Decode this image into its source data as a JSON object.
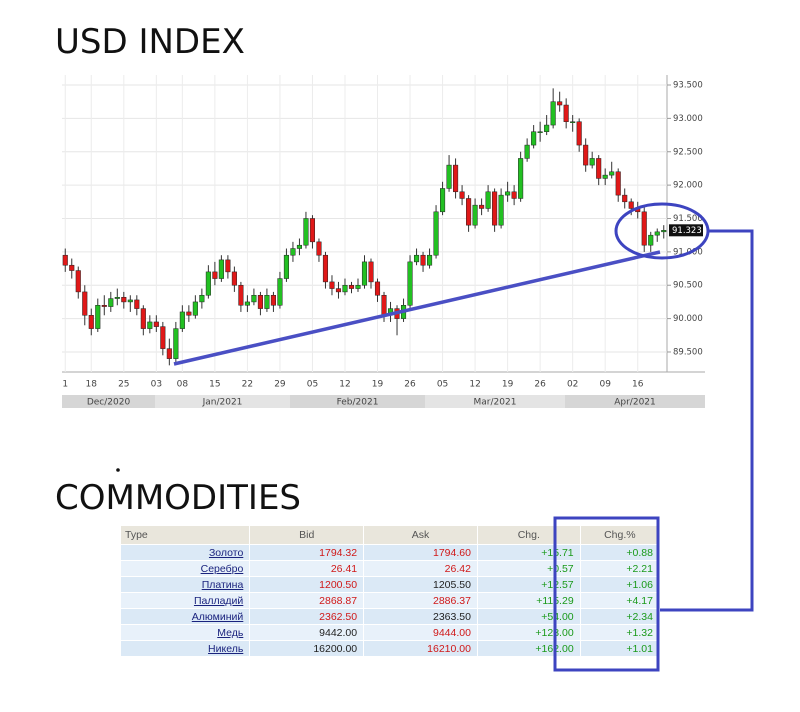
{
  "chart_data": {
    "type": "candlestick",
    "title": "USD INDEX",
    "categories": [
      "1",
      null,
      null,
      null,
      "18",
      null,
      null,
      null,
      null,
      "25",
      null,
      null,
      null,
      null,
      "03",
      null,
      null,
      null,
      "08",
      null,
      null,
      null,
      null,
      "15",
      null,
      null,
      null,
      null,
      "22",
      null,
      null,
      null,
      null,
      "29",
      null,
      null,
      null,
      null,
      "05",
      null,
      null,
      null,
      null,
      "12",
      null,
      null,
      null,
      null,
      "19",
      null,
      null,
      null,
      null,
      "26",
      null,
      null,
      null,
      null,
      "05",
      null,
      null,
      null,
      null,
      "12",
      null,
      null,
      null,
      null,
      "19",
      null,
      null,
      null,
      null,
      "26",
      null,
      null,
      null,
      null,
      "02",
      null,
      null,
      null,
      null,
      "09",
      null,
      null,
      null,
      null,
      "16",
      null,
      null,
      null,
      null
    ],
    "periods": [
      "Dec/2020",
      "Jan/2021",
      "Feb/2021",
      "Mar/2021",
      "Apr/2021"
    ],
    "candles": [
      [
        90.95,
        91.05,
        90.7,
        90.8
      ],
      [
        90.8,
        90.9,
        90.6,
        90.72
      ],
      [
        90.72,
        90.78,
        90.3,
        90.4
      ],
      [
        90.4,
        90.5,
        89.9,
        90.05
      ],
      [
        90.05,
        90.15,
        89.75,
        89.85
      ],
      [
        89.85,
        90.3,
        89.8,
        90.2
      ],
      [
        90.2,
        90.35,
        90.05,
        90.18
      ],
      [
        90.18,
        90.4,
        90.1,
        90.3
      ],
      [
        90.3,
        90.45,
        90.2,
        90.32
      ],
      [
        90.32,
        90.4,
        90.15,
        90.25
      ],
      [
        90.25,
        90.35,
        90.1,
        90.28
      ],
      [
        90.28,
        90.35,
        90.05,
        90.15
      ],
      [
        90.15,
        90.2,
        89.75,
        89.85
      ],
      [
        89.85,
        90.05,
        89.78,
        89.95
      ],
      [
        89.95,
        90.05,
        89.8,
        89.88
      ],
      [
        89.88,
        89.95,
        89.45,
        89.55
      ],
      [
        89.55,
        89.7,
        89.3,
        89.4
      ],
      [
        89.4,
        89.95,
        89.35,
        89.85
      ],
      [
        89.85,
        90.2,
        89.8,
        90.1
      ],
      [
        90.1,
        90.2,
        89.95,
        90.05
      ],
      [
        90.05,
        90.35,
        90.0,
        90.25
      ],
      [
        90.25,
        90.45,
        90.15,
        90.35
      ],
      [
        90.35,
        90.8,
        90.3,
        90.7
      ],
      [
        90.7,
        90.85,
        90.5,
        90.6
      ],
      [
        90.6,
        90.95,
        90.55,
        90.88
      ],
      [
        90.88,
        90.95,
        90.6,
        90.7
      ],
      [
        90.7,
        90.78,
        90.4,
        90.5
      ],
      [
        90.5,
        90.55,
        90.1,
        90.2
      ],
      [
        90.2,
        90.35,
        90.1,
        90.25
      ],
      [
        90.25,
        90.45,
        90.2,
        90.35
      ],
      [
        90.35,
        90.4,
        90.05,
        90.15
      ],
      [
        90.15,
        90.45,
        90.1,
        90.35
      ],
      [
        90.35,
        90.4,
        90.1,
        90.2
      ],
      [
        90.2,
        90.7,
        90.15,
        90.6
      ],
      [
        90.6,
        91.05,
        90.55,
        90.95
      ],
      [
        90.95,
        91.15,
        90.85,
        91.05
      ],
      [
        91.05,
        91.2,
        90.95,
        91.1
      ],
      [
        91.1,
        91.6,
        91.05,
        91.5
      ],
      [
        91.5,
        91.55,
        91.05,
        91.15
      ],
      [
        91.15,
        91.2,
        90.85,
        90.95
      ],
      [
        90.95,
        91.0,
        90.45,
        90.55
      ],
      [
        90.55,
        90.65,
        90.35,
        90.45
      ],
      [
        90.45,
        90.55,
        90.3,
        90.4
      ],
      [
        90.4,
        90.6,
        90.35,
        90.5
      ],
      [
        90.5,
        90.55,
        90.38,
        90.45
      ],
      [
        90.45,
        90.6,
        90.4,
        90.5
      ],
      [
        90.5,
        90.95,
        90.45,
        90.85
      ],
      [
        90.85,
        90.9,
        90.45,
        90.55
      ],
      [
        90.55,
        90.6,
        90.25,
        90.35
      ],
      [
        90.35,
        90.4,
        89.95,
        90.05
      ],
      [
        90.05,
        90.25,
        89.95,
        90.15
      ],
      [
        90.15,
        90.2,
        89.75,
        90.0
      ],
      [
        90.0,
        90.3,
        89.95,
        90.2
      ],
      [
        90.2,
        90.95,
        90.15,
        90.85
      ],
      [
        90.85,
        91.05,
        90.8,
        90.95
      ],
      [
        90.95,
        91.0,
        90.7,
        90.8
      ],
      [
        90.8,
        91.05,
        90.75,
        90.95
      ],
      [
        90.95,
        91.7,
        90.9,
        91.6
      ],
      [
        91.6,
        92.05,
        91.55,
        91.95
      ],
      [
        91.95,
        92.45,
        91.9,
        92.3
      ],
      [
        92.3,
        92.4,
        91.8,
        91.9
      ],
      [
        91.9,
        92.0,
        91.7,
        91.8
      ],
      [
        91.8,
        91.85,
        91.3,
        91.4
      ],
      [
        91.4,
        91.8,
        91.35,
        91.7
      ],
      [
        91.7,
        91.8,
        91.55,
        91.65
      ],
      [
        91.65,
        92.0,
        91.6,
        91.9
      ],
      [
        91.9,
        91.95,
        91.3,
        91.4
      ],
      [
        91.4,
        91.95,
        91.35,
        91.85
      ],
      [
        91.85,
        92.05,
        91.75,
        91.9
      ],
      [
        91.9,
        92.0,
        91.7,
        91.8
      ],
      [
        91.8,
        92.5,
        91.75,
        92.4
      ],
      [
        92.4,
        92.7,
        92.35,
        92.6
      ],
      [
        92.6,
        92.9,
        92.55,
        92.8
      ],
      [
        92.8,
        92.95,
        92.65,
        92.8
      ],
      [
        92.8,
        93.05,
        92.75,
        92.9
      ],
      [
        92.9,
        93.45,
        92.85,
        93.25
      ],
      [
        93.25,
        93.4,
        93.1,
        93.2
      ],
      [
        93.2,
        93.3,
        92.85,
        92.95
      ],
      [
        92.95,
        93.05,
        92.8,
        92.95
      ],
      [
        92.95,
        93.0,
        92.5,
        92.6
      ],
      [
        92.6,
        92.7,
        92.2,
        92.3
      ],
      [
        92.3,
        92.5,
        92.25,
        92.4
      ],
      [
        92.4,
        92.45,
        92.0,
        92.1
      ],
      [
        92.1,
        92.25,
        92.0,
        92.15
      ],
      [
        92.15,
        92.35,
        92.1,
        92.2
      ],
      [
        92.2,
        92.25,
        91.75,
        91.85
      ],
      [
        91.85,
        91.95,
        91.65,
        91.75
      ],
      [
        91.75,
        91.8,
        91.55,
        91.65
      ],
      [
        91.65,
        91.75,
        91.5,
        91.6
      ],
      [
        91.6,
        91.7,
        91.0,
        91.1
      ],
      [
        91.1,
        91.3,
        91.0,
        91.25
      ],
      [
        91.25,
        91.35,
        91.15,
        91.3
      ],
      [
        91.3,
        91.4,
        91.2,
        91.323
      ]
    ],
    "last_price": 91.323,
    "up_color": "#22c022",
    "down_color": "#e01818",
    "ylim": [
      89.2,
      93.65
    ],
    "yticks": [
      {
        "value": 89.5,
        "label": "89.500"
      },
      {
        "value": 90,
        "label": "90.000"
      },
      {
        "value": 90.5,
        "label": "90.500"
      },
      {
        "value": 91,
        "label": "91.000"
      },
      {
        "value": 91.5,
        "label": "91.500"
      },
      {
        "value": 92,
        "label": "92.000"
      },
      {
        "value": 92.5,
        "label": "92.500"
      },
      {
        "value": 93,
        "label": "93.000"
      },
      {
        "value": 93.5,
        "label": "93.500"
      }
    ],
    "grid": true
  },
  "table": {
    "title": "COMMODITIES",
    "columns": [
      "Type",
      "Bid",
      "Ask",
      "Chg.",
      "Chg.%"
    ],
    "rows": [
      {
        "type": "Золото",
        "bid": "1794.32",
        "ask": "1794.60",
        "chg": "+15.71",
        "chg_pct": "+0.88",
        "bid_color": "#d01818",
        "ask_color": "#d01818"
      },
      {
        "type": "Серебро",
        "bid": "26.41",
        "ask": "26.42",
        "chg": "+0.57",
        "chg_pct": "+2.21",
        "bid_color": "#d01818",
        "ask_color": "#d01818"
      },
      {
        "type": "Платина",
        "bid": "1200.50",
        "ask": "1205.50",
        "chg": "+12.57",
        "chg_pct": "+1.06",
        "bid_color": "#d01818",
        "ask_color": "#222222"
      },
      {
        "type": "Палладий",
        "bid": "2868.87",
        "ask": "2886.37",
        "chg": "+115.29",
        "chg_pct": "+4.17",
        "bid_color": "#d01818",
        "ask_color": "#d01818"
      },
      {
        "type": "Алюминий",
        "bid": "2362.50",
        "ask": "2363.50",
        "chg": "+54.00",
        "chg_pct": "+2.34",
        "bid_color": "#d01818",
        "ask_color": "#222222"
      },
      {
        "type": "Медь",
        "bid": "9442.00",
        "ask": "9444.00",
        "chg": "+123.00",
        "chg_pct": "+1.32",
        "bid_color": "#222222",
        "ask_color": "#d01818"
      },
      {
        "type": "Никель",
        "bid": "16200.00",
        "ask": "16210.00",
        "chg": "+162.00",
        "chg_pct": "+1.01",
        "bid_color": "#222222",
        "ask_color": "#d01818"
      }
    ]
  }
}
